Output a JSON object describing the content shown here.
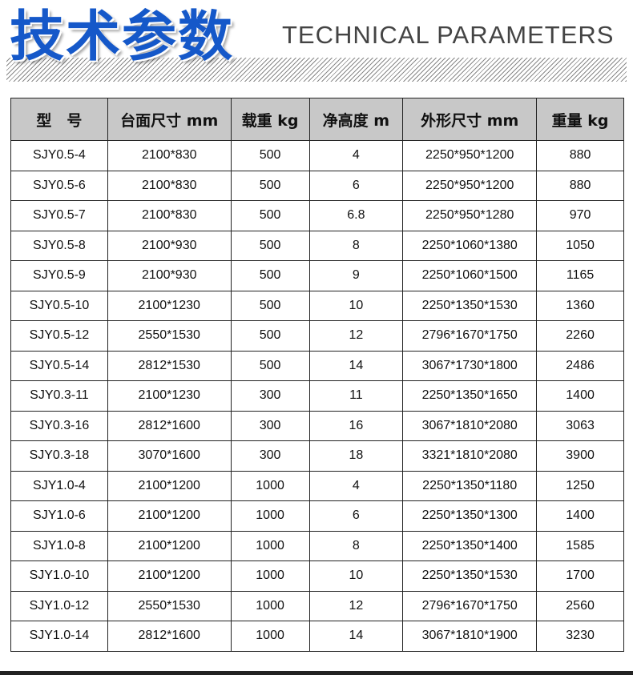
{
  "header": {
    "title_cn": "技术参数",
    "title_en": "TECHNICAL  PARAMETERS"
  },
  "table": {
    "columns": [
      "型　号",
      "台面尺寸 mm",
      "载重 kg",
      "净高度 m",
      "外形尺寸  mm",
      "重量 kg"
    ],
    "rows": [
      [
        "SJY0.5-4",
        "2100*830",
        "500",
        "4",
        "2250*950*1200",
        "880"
      ],
      [
        "SJY0.5-6",
        "2100*830",
        "500",
        "6",
        "2250*950*1200",
        "880"
      ],
      [
        "SJY0.5-7",
        "2100*830",
        "500",
        "6.8",
        "2250*950*1280",
        "970"
      ],
      [
        "SJY0.5-8",
        "2100*930",
        "500",
        "8",
        "2250*1060*1380",
        "1050"
      ],
      [
        "SJY0.5-9",
        "2100*930",
        "500",
        "9",
        "2250*1060*1500",
        "1165"
      ],
      [
        "SJY0.5-10",
        "2100*1230",
        "500",
        "10",
        "2250*1350*1530",
        "1360"
      ],
      [
        "SJY0.5-12",
        "2550*1530",
        "500",
        "12",
        "2796*1670*1750",
        "2260"
      ],
      [
        "SJY0.5-14",
        "2812*1530",
        "500",
        "14",
        "3067*1730*1800",
        "2486"
      ],
      [
        "SJY0.3-11",
        "2100*1230",
        "300",
        "11",
        "2250*1350*1650",
        "1400"
      ],
      [
        "SJY0.3-16",
        "2812*1600",
        "300",
        "16",
        "3067*1810*2080",
        "3063"
      ],
      [
        "SJY0.3-18",
        "3070*1600",
        "300",
        "18",
        "3321*1810*2080",
        "3900"
      ],
      [
        "SJY1.0-4",
        "2100*1200",
        "1000",
        "4",
        "2250*1350*1180",
        "1250"
      ],
      [
        "SJY1.0-6",
        "2100*1200",
        "1000",
        "6",
        "2250*1350*1300",
        "1400"
      ],
      [
        "SJY1.0-8",
        "2100*1200",
        "1000",
        "8",
        "2250*1350*1400",
        "1585"
      ],
      [
        "SJY1.0-10",
        "2100*1200",
        "1000",
        "10",
        "2250*1350*1530",
        "1700"
      ],
      [
        "SJY1.0-12",
        "2550*1530",
        "1000",
        "12",
        "2796*1670*1750",
        "2560"
      ],
      [
        "SJY1.0-14",
        "2812*1600",
        "1000",
        "14",
        "3067*1810*1900",
        "3230"
      ]
    ]
  },
  "colors": {
    "title": "#1558c9",
    "header_bg": "#c8c8c8"
  }
}
